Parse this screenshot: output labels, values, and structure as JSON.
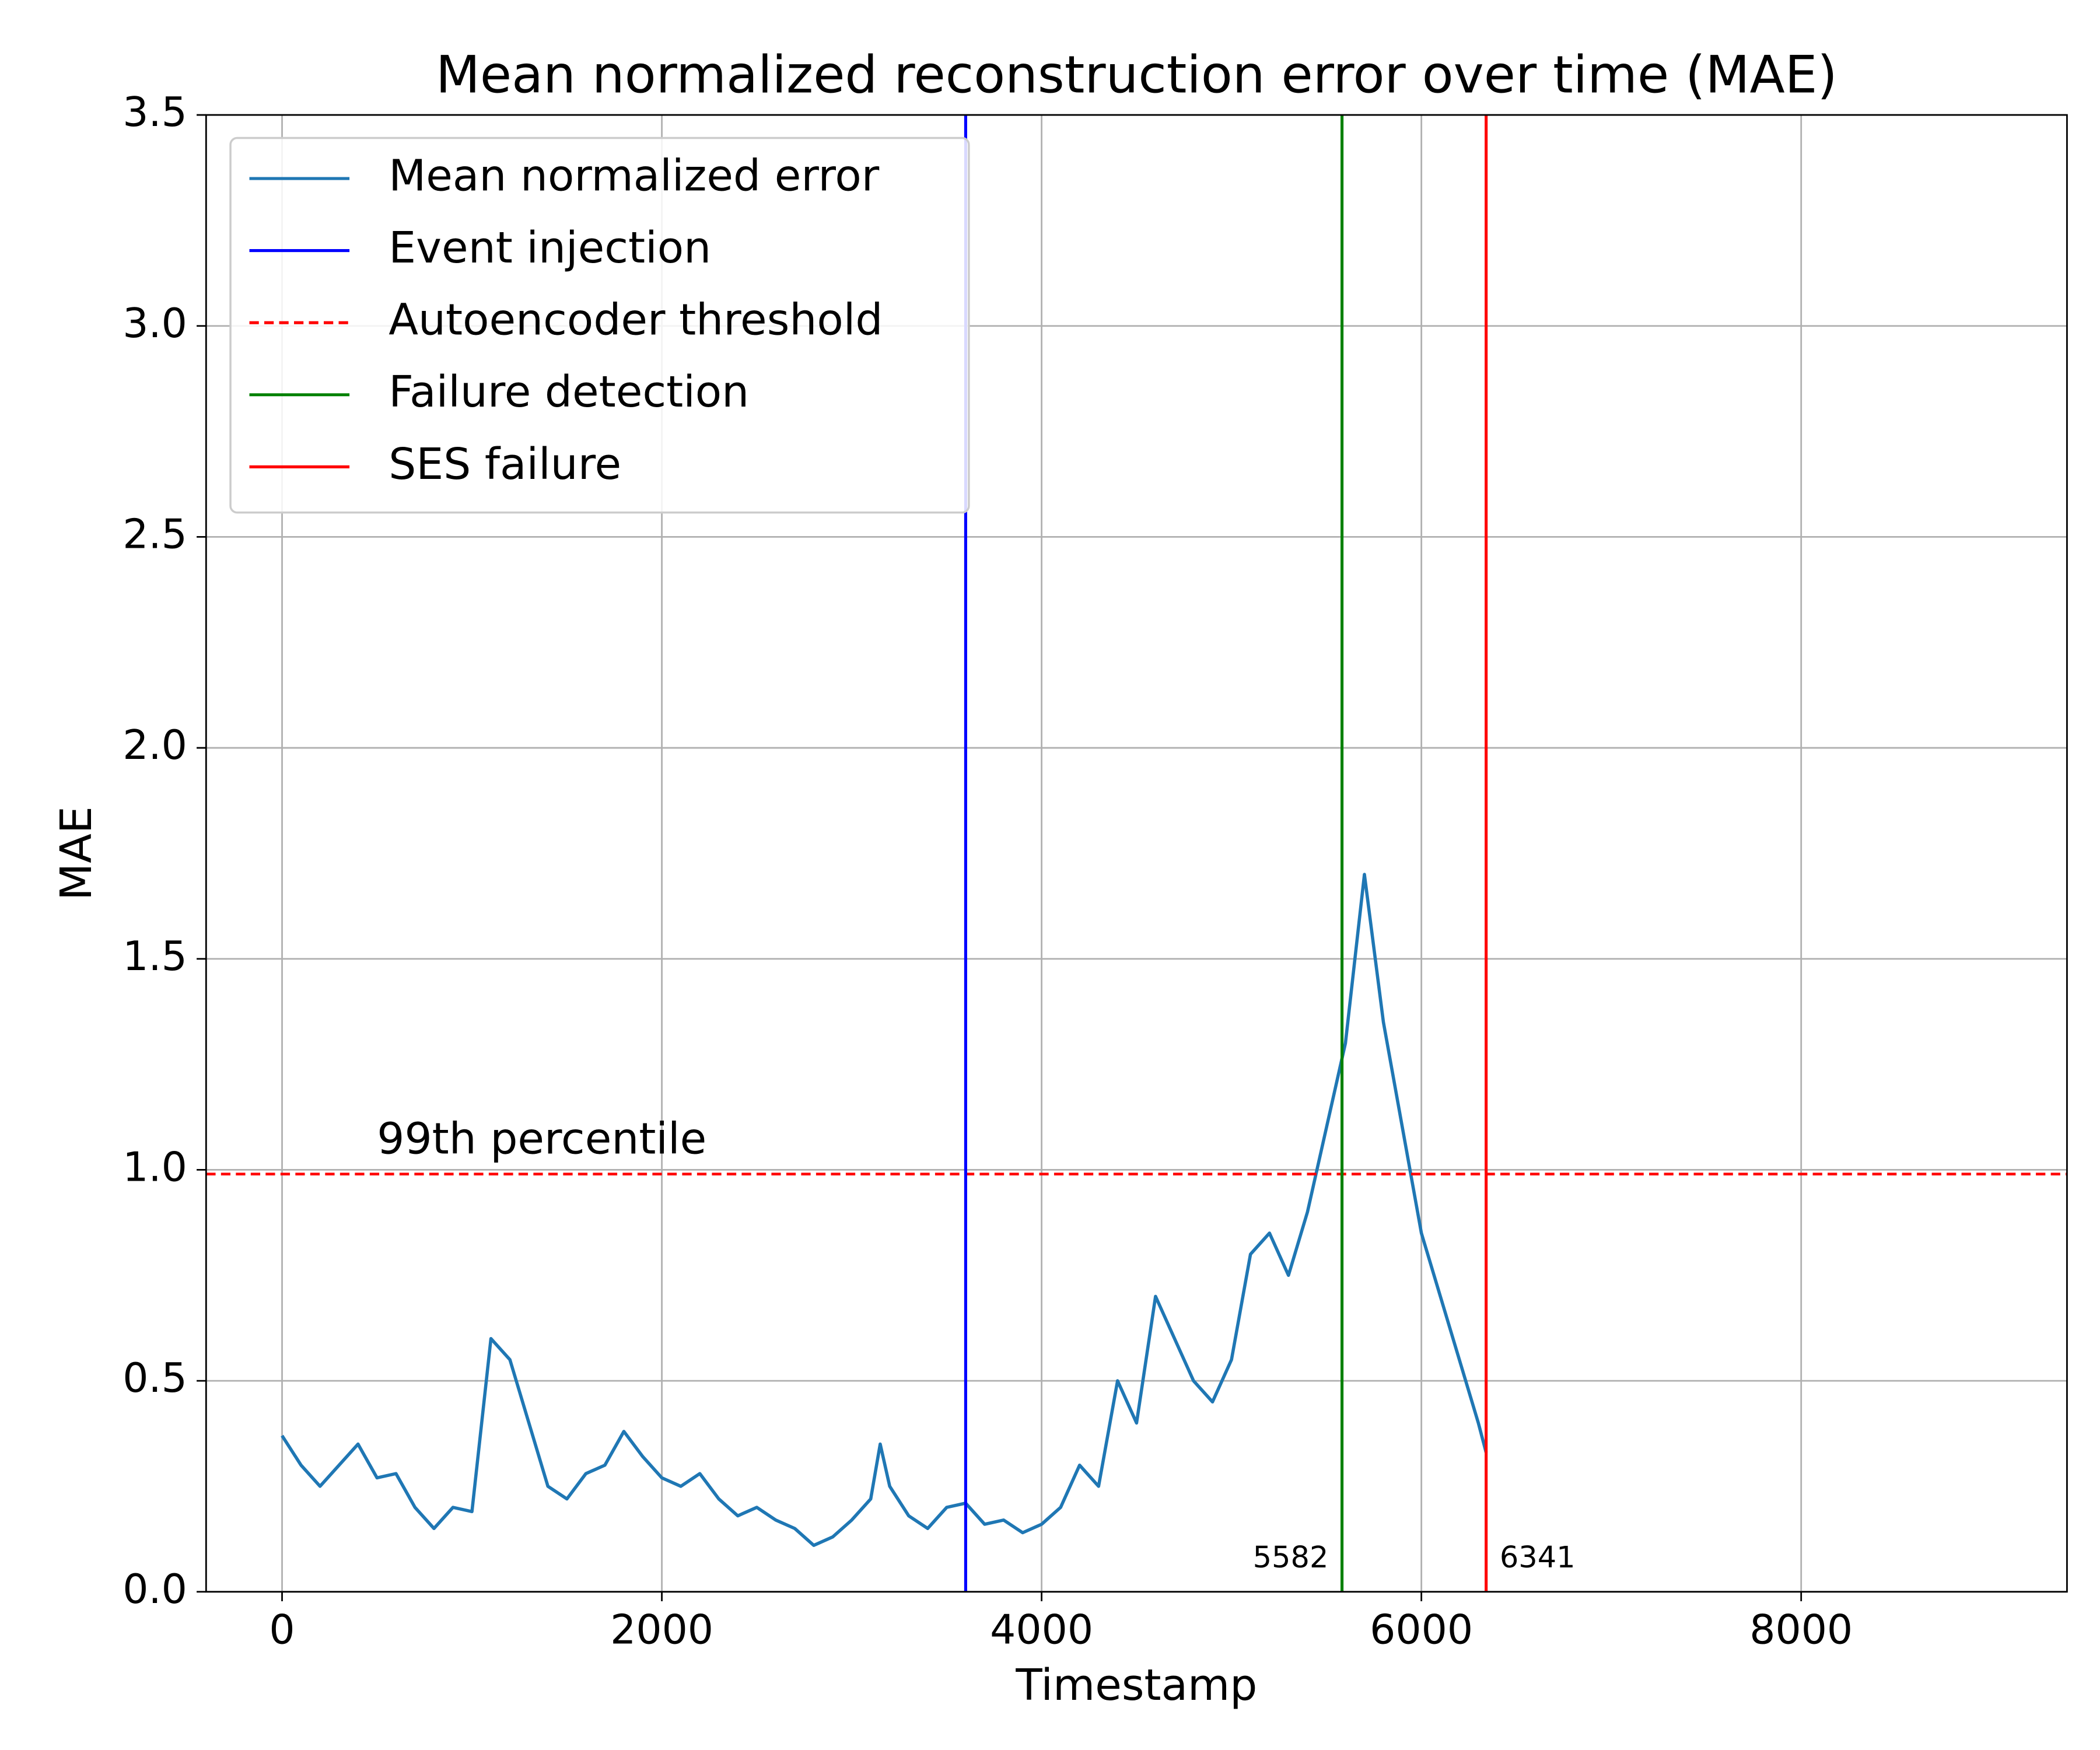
{
  "chart_data": {
    "type": "line",
    "title": "Mean normalized reconstruction error over time (MAE)",
    "xlabel": "Timestamp",
    "ylabel": "MAE",
    "x": [
      0,
      100,
      200,
      300,
      400,
      500,
      600,
      700,
      800,
      900,
      1000,
      1100,
      1200,
      1300,
      1400,
      1500,
      1600,
      1700,
      1800,
      1900,
      2000,
      2100,
      2200,
      2300,
      2400,
      2500,
      2600,
      2700,
      2800,
      2900,
      3000,
      3100,
      3150,
      3200,
      3300,
      3400,
      3500,
      3600,
      3700,
      3800,
      3900,
      4000,
      4100,
      4200,
      4300,
      4400,
      4500,
      4600,
      4700,
      4800,
      4900,
      5000,
      5100,
      5200,
      5300,
      5400,
      5500,
      5600,
      5700,
      5800,
      5900,
      6000,
      6100,
      6200,
      6300,
      6341
    ],
    "series": [
      {
        "name": "Mean normalized error",
        "color": "#1f77b4",
        "values": [
          0.37,
          0.3,
          0.25,
          0.3,
          0.35,
          0.27,
          0.28,
          0.2,
          0.15,
          0.2,
          0.19,
          0.6,
          0.55,
          0.4,
          0.25,
          0.22,
          0.28,
          0.3,
          0.38,
          0.32,
          0.27,
          0.25,
          0.28,
          0.22,
          0.18,
          0.2,
          0.17,
          0.15,
          0.11,
          0.13,
          0.17,
          0.22,
          0.35,
          0.25,
          0.18,
          0.15,
          0.2,
          0.21,
          0.16,
          0.17,
          0.14,
          0.16,
          0.2,
          0.3,
          0.25,
          0.5,
          0.4,
          0.7,
          0.6,
          0.5,
          0.45,
          0.55,
          0.8,
          0.85,
          0.75,
          0.9,
          1.1,
          1.3,
          1.7,
          1.35,
          1.1,
          0.85,
          0.7,
          0.55,
          0.4,
          0.33
        ]
      }
    ],
    "vlines": [
      {
        "name": "Event injection",
        "x": 3600,
        "color": "#0000ff",
        "style": "solid"
      },
      {
        "name": "Failure detection",
        "x": 5582,
        "color": "#008000",
        "style": "solid"
      },
      {
        "name": "SES failure",
        "x": 6341,
        "color": "#ff0000",
        "style": "solid"
      }
    ],
    "hlines": [
      {
        "name": "Autoencoder threshold",
        "y": 0.99,
        "color": "#ff0000",
        "style": "dashed",
        "annotation": "99th percentile",
        "annotation_x": 500
      }
    ],
    "xlim": [
      -400,
      9400
    ],
    "ylim": [
      0,
      3.5
    ],
    "xticks": [
      0,
      2000,
      4000,
      6000,
      8000
    ],
    "yticks": [
      {
        "value": 0,
        "label": "0.0"
      },
      {
        "value": 0.5,
        "label": "0.5"
      },
      {
        "value": 1,
        "label": "1.0"
      },
      {
        "value": 1.5,
        "label": "1.5"
      },
      {
        "value": 2,
        "label": "2.0"
      },
      {
        "value": 2.5,
        "label": "2.5"
      },
      {
        "value": 3,
        "label": "3.0"
      },
      {
        "value": 3.5,
        "label": "3.5"
      }
    ],
    "grid": true,
    "legend": "upper left"
  }
}
